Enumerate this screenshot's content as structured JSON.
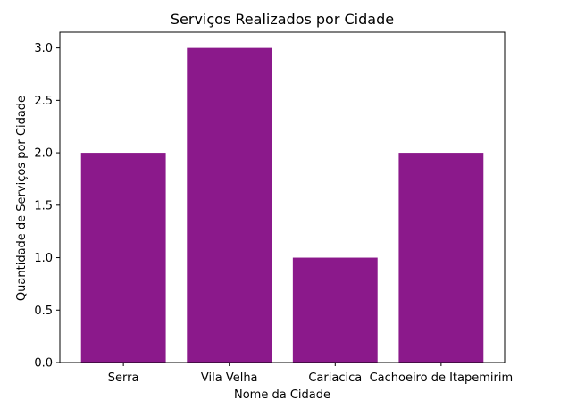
{
  "chart_data": {
    "type": "bar",
    "title": "Serviços Realizados por Cidade",
    "xlabel": "Nome da Cidade",
    "ylabel": "Quantidade de Serviços por Cidade",
    "categories": [
      "Serra",
      "Vila Velha",
      "Cariacica",
      "Cachoeiro de Itapemirim"
    ],
    "values": [
      2,
      3,
      1,
      2
    ],
    "ylim": [
      0,
      3.15
    ],
    "yticks": [
      "0.0",
      "0.5",
      "1.0",
      "1.5",
      "2.0",
      "2.5",
      "3.0"
    ],
    "bar_color": "#8B198B",
    "grid": false,
    "legend": "none"
  }
}
